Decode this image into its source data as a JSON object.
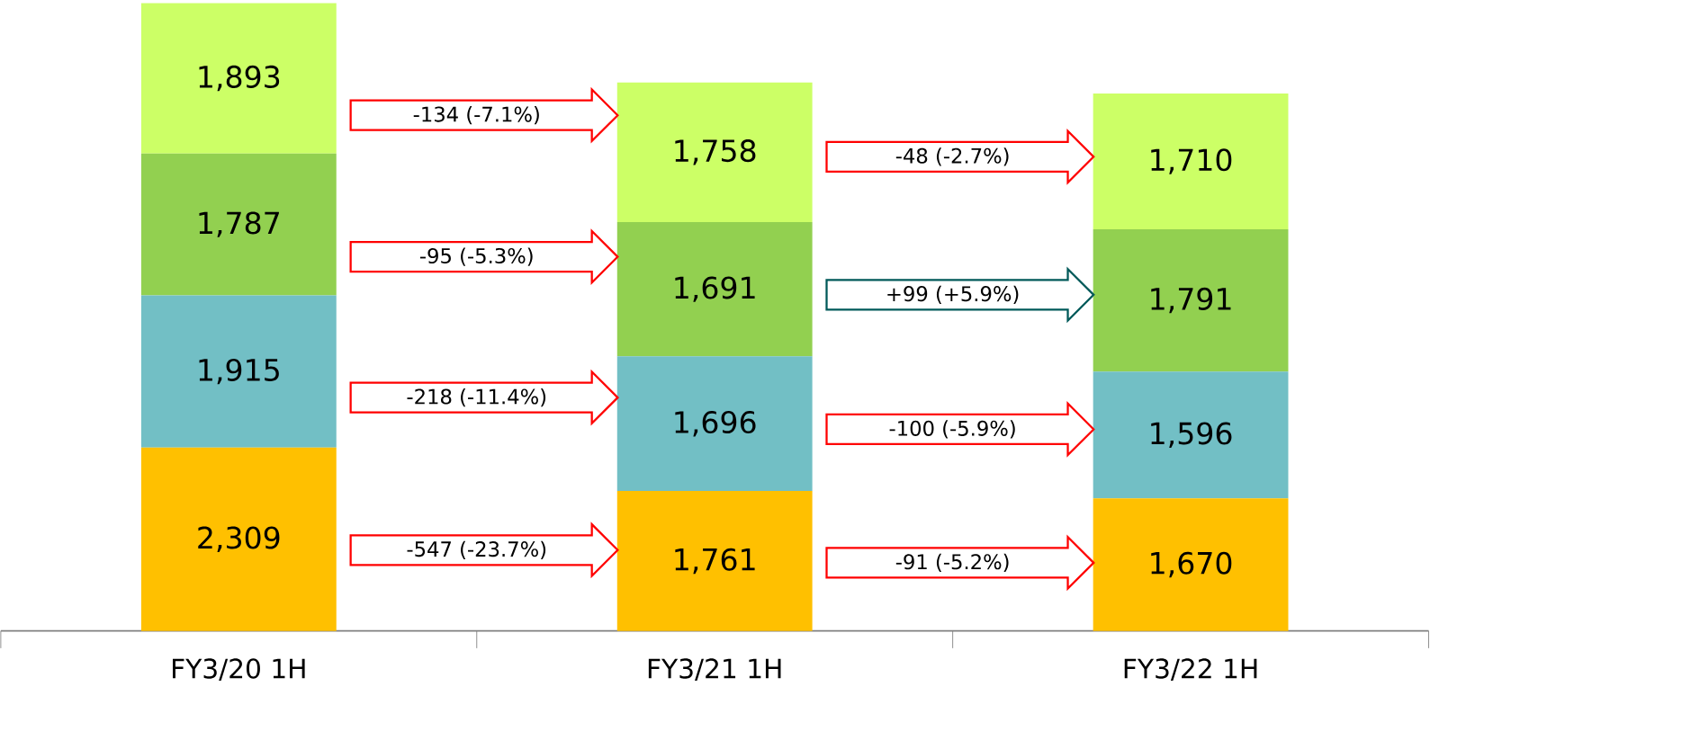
{
  "chart_data": {
    "type": "bar",
    "stacked": true,
    "categories": [
      "FY3/20 1H",
      "FY3/21 1H",
      "FY3/22 1H"
    ],
    "series": [
      {
        "color": "#ffc000",
        "values": [
          2309,
          1761,
          1670
        ],
        "value_labels": [
          "2,309",
          "1,761",
          "1,670"
        ]
      },
      {
        "color": "#72bfc5",
        "values": [
          1915,
          1696,
          1596
        ],
        "value_labels": [
          "1,915",
          "1,696",
          "1,596"
        ]
      },
      {
        "color": "#92d050",
        "values": [
          1787,
          1691,
          1791
        ],
        "value_labels": [
          "1,787",
          "1,691",
          "1,791"
        ]
      },
      {
        "color": "#ccff66",
        "values": [
          1893,
          1758,
          1710
        ],
        "value_labels": [
          "1,893",
          "1,758",
          "1,710"
        ]
      }
    ],
    "annotations": [
      "-547 (-23.7%)",
      "-218 (-11.4%)",
      "-95 (-5.3%)",
      "-134 (-7.1%)",
      "-91 (-5.2%)",
      "-100 (-5.9%)",
      "+99 (+5.9%)",
      "-48 (-2.7%)"
    ]
  }
}
